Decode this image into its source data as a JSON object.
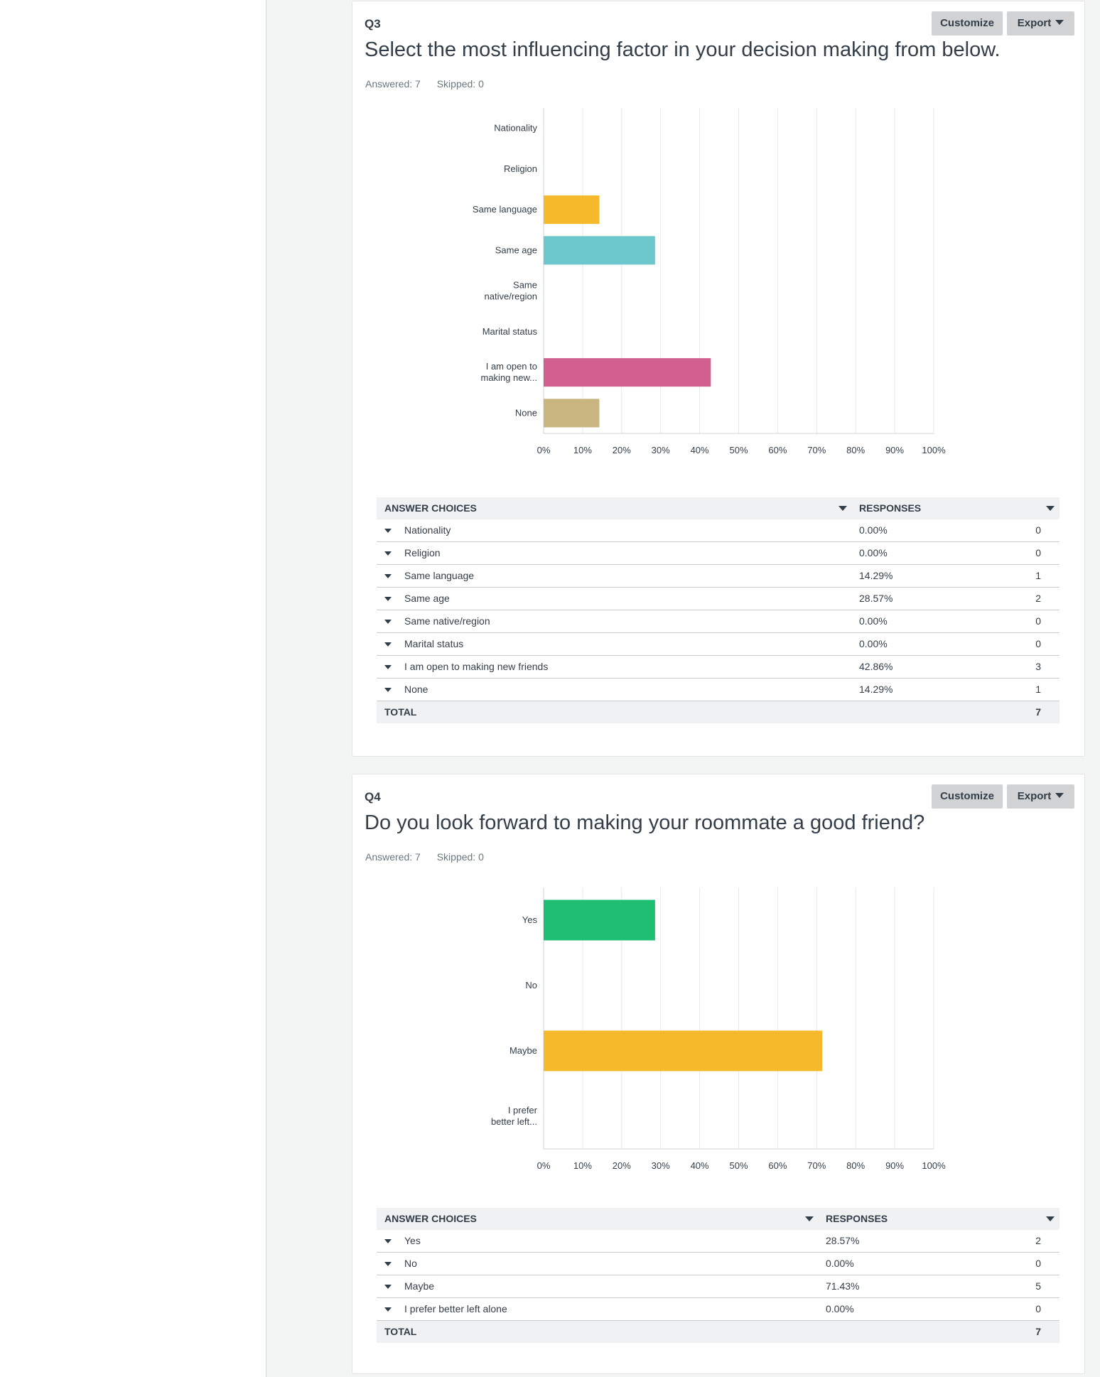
{
  "questions": [
    {
      "number": "Q3",
      "title": "Select the most influencing factor in your decision making from below.",
      "answered": "Answered: 7",
      "skipped": "Skipped: 0",
      "customize_label": "Customize",
      "export_label": "Export",
      "table": {
        "header_choices": "ANSWER CHOICES",
        "header_responses": "RESPONSES",
        "rows": [
          {
            "label": "Nationality",
            "pct": "0.00%",
            "count": "0"
          },
          {
            "label": "Religion",
            "pct": "0.00%",
            "count": "0"
          },
          {
            "label": "Same language",
            "pct": "14.29%",
            "count": "1"
          },
          {
            "label": "Same age",
            "pct": "28.57%",
            "count": "2"
          },
          {
            "label": "Same native/region",
            "pct": "0.00%",
            "count": "0"
          },
          {
            "label": "Marital status",
            "pct": "0.00%",
            "count": "0"
          },
          {
            "label": "I am open to making new friends",
            "pct": "42.86%",
            "count": "3"
          },
          {
            "label": "None",
            "pct": "14.29%",
            "count": "1"
          }
        ],
        "total_label": "TOTAL",
        "total_value": "7"
      },
      "chart_data": {
        "type": "bar",
        "orientation": "horizontal",
        "categories": [
          [
            "Nationality"
          ],
          [
            "Religion"
          ],
          [
            "Same language"
          ],
          [
            "Same age"
          ],
          [
            "Same",
            "native/region"
          ],
          [
            "Marital status"
          ],
          [
            "I am open to",
            "making new..."
          ],
          [
            "None"
          ]
        ],
        "values": [
          0,
          0,
          14.29,
          28.57,
          0,
          0,
          42.86,
          14.29
        ],
        "colors": [
          "#00bf6f",
          "#507cb6",
          "#f7b92c",
          "#6bc8cd",
          "#ff8b4f",
          "#7d5e90",
          "#d25f90",
          "#c8b57f"
        ],
        "xlim": [
          0,
          100
        ],
        "tick_labels": [
          "0%",
          "10%",
          "20%",
          "30%",
          "40%",
          "50%",
          "60%",
          "70%",
          "80%",
          "90%",
          "100%"
        ],
        "grid": true
      }
    },
    {
      "number": "Q4",
      "title": "Do you look forward to making your roommate a good friend?",
      "answered": "Answered: 7",
      "skipped": "Skipped: 0",
      "customize_label": "Customize",
      "export_label": "Export",
      "table": {
        "header_choices": "ANSWER CHOICES",
        "header_responses": "RESPONSES",
        "rows": [
          {
            "label": "Yes",
            "pct": "28.57%",
            "count": "2"
          },
          {
            "label": "No",
            "pct": "0.00%",
            "count": "0"
          },
          {
            "label": "Maybe",
            "pct": "71.43%",
            "count": "5"
          },
          {
            "label": "I prefer better left alone",
            "pct": "0.00%",
            "count": "0"
          }
        ],
        "total_label": "TOTAL",
        "total_value": "7"
      },
      "chart_data": {
        "type": "bar",
        "orientation": "horizontal",
        "categories": [
          [
            "Yes"
          ],
          [
            "No"
          ],
          [
            "Maybe"
          ],
          [
            "I prefer",
            "better left..."
          ]
        ],
        "values": [
          28.57,
          0,
          71.43,
          0
        ],
        "colors": [
          "#1fbf73",
          "#507cb6",
          "#f7b92c",
          "#6bc8cd"
        ],
        "xlim": [
          0,
          100
        ],
        "tick_labels": [
          "0%",
          "10%",
          "20%",
          "30%",
          "40%",
          "50%",
          "60%",
          "70%",
          "80%",
          "90%",
          "100%"
        ],
        "grid": true
      }
    }
  ]
}
